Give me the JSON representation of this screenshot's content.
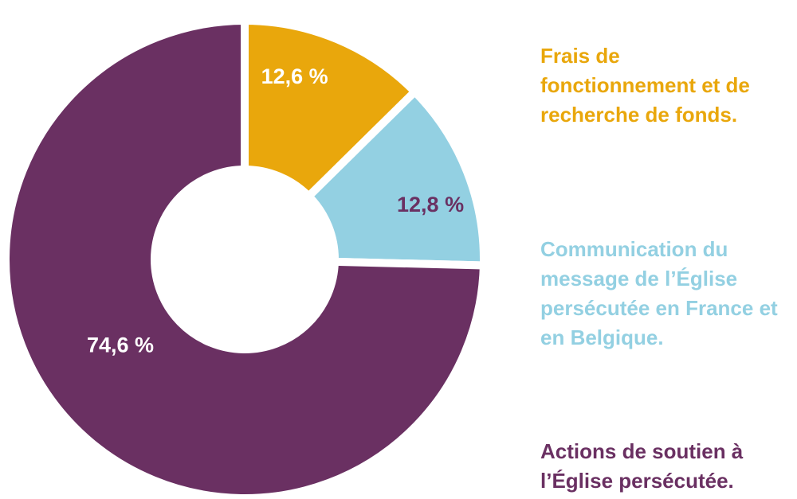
{
  "chart_data": {
    "type": "pie",
    "donut": true,
    "categories": [
      "Frais de fonctionnement et de recherche de fonds.",
      "Communication du message de l’Église persécutée en France et en Belgique.",
      "Actions de soutien à l’Église persécutée."
    ],
    "values": [
      12.6,
      12.8,
      74.6
    ],
    "data_labels": [
      "12,6 %",
      "12,8 %",
      "74,6 %"
    ],
    "colors": [
      "#E9A70C",
      "#93D0E2",
      "#6A3062"
    ],
    "label_colors": [
      "#FFFFFF",
      "#6A3062",
      "#FFFFFF"
    ],
    "legend_placement": "right"
  }
}
